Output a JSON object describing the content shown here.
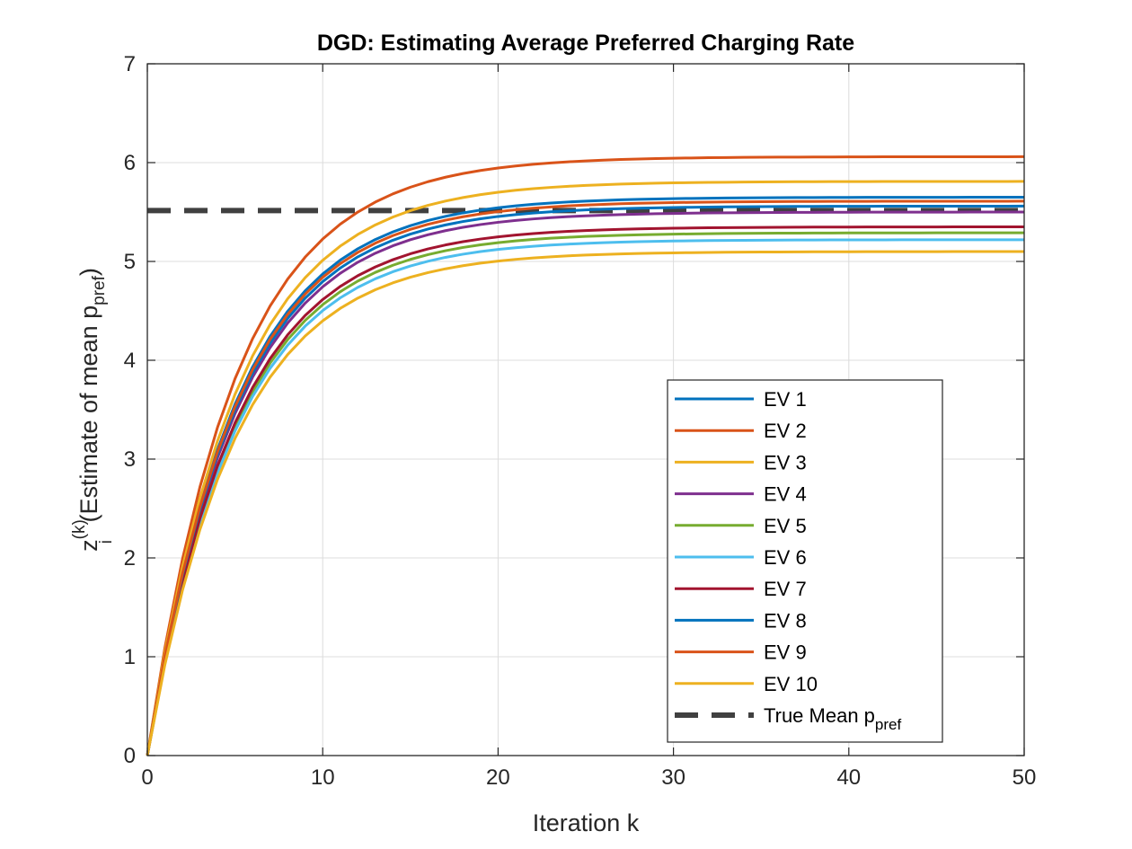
{
  "chart_data": {
    "type": "line",
    "title": "DGD: Estimating Average Preferred Charging Rate",
    "xlabel": "Iteration k",
    "ylabel": {
      "base": "z",
      "sub": "i",
      "sup": "(k)",
      "text": " (Estimate of mean p",
      "text_sub": "pref",
      "text_end": ")"
    },
    "xlim": [
      0,
      50
    ],
    "ylim": [
      0,
      7
    ],
    "xticks": [
      0,
      10,
      20,
      30,
      40,
      50
    ],
    "yticks": [
      0,
      1,
      2,
      3,
      4,
      5,
      6,
      7
    ],
    "grid": true,
    "legend_position": "lower-right",
    "convergence_rate": 0.82,
    "series": [
      {
        "name": "EV 1",
        "final": 5.65,
        "color": "#0072BD"
      },
      {
        "name": "EV 2",
        "final": 6.06,
        "color": "#D95319"
      },
      {
        "name": "EV 3",
        "final": 5.81,
        "color": "#EDB120"
      },
      {
        "name": "EV 4",
        "final": 5.5,
        "color": "#7E2F8E"
      },
      {
        "name": "EV 5",
        "final": 5.29,
        "color": "#77AC30"
      },
      {
        "name": "EV 6",
        "final": 5.22,
        "color": "#4DBEEE"
      },
      {
        "name": "EV 7",
        "final": 5.35,
        "color": "#A2142F"
      },
      {
        "name": "EV 8",
        "final": 5.56,
        "color": "#0072BD"
      },
      {
        "name": "EV 9",
        "final": 5.61,
        "color": "#D95319"
      },
      {
        "name": "EV 10",
        "final": 5.1,
        "color": "#EDB120"
      }
    ],
    "reference_line": {
      "name": "True Mean p",
      "name_sub": "pref",
      "value": 5.515,
      "color": "#404040",
      "style": "dashed"
    }
  }
}
